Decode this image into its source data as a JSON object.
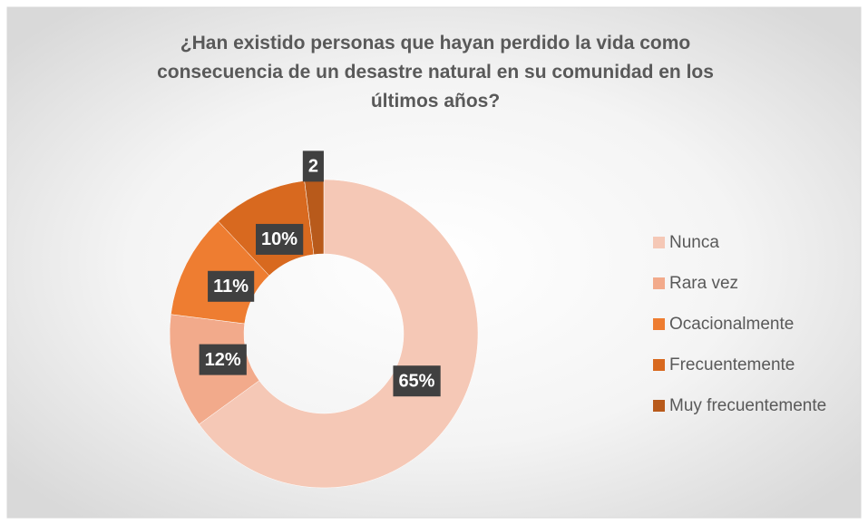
{
  "chart_data": {
    "type": "donut",
    "title": "¿Han existido personas que hayan perdido la vida como consecuencia de un desastre natural en su comunidad en los últimos años?",
    "categories": [
      "Nunca",
      "Rara vez",
      "Ocacionalmente",
      "Frecuentemente",
      "Muy frecuentemente"
    ],
    "values": [
      65,
      12,
      11,
      10,
      2
    ],
    "value_labels": [
      "65%",
      "12%",
      "11%",
      "10%",
      "2"
    ],
    "colors": [
      "#f5c8b6",
      "#f2aa8b",
      "#ee7d31",
      "#d8691f",
      "#b85a1b"
    ],
    "legend": "right"
  }
}
